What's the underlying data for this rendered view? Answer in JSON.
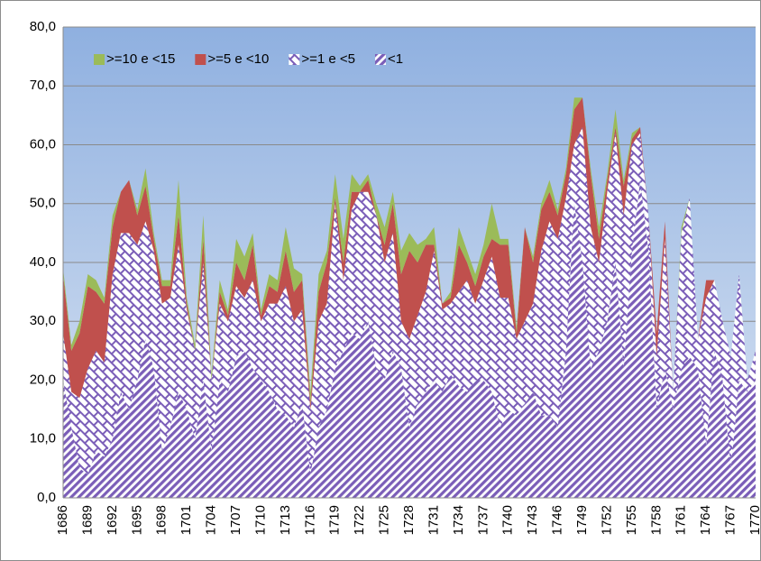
{
  "chart_data": {
    "type": "stacked_area",
    "categories": [
      "1686",
      null,
      null,
      "1689",
      null,
      null,
      "1692",
      null,
      null,
      "1695",
      null,
      null,
      "1698",
      null,
      null,
      "1701",
      null,
      null,
      "1704",
      null,
      null,
      "1707",
      null,
      null,
      "1710",
      null,
      null,
      "1713",
      null,
      null,
      "1716",
      null,
      null,
      "1719",
      null,
      null,
      "1722",
      null,
      null,
      "1725",
      null,
      null,
      "1728",
      null,
      null,
      "1731",
      null,
      null,
      "1734",
      null,
      null,
      "1737",
      null,
      null,
      "1740",
      null,
      null,
      "1743",
      null,
      null,
      "1746",
      null,
      null,
      "1749",
      null,
      null,
      "1752",
      null,
      null,
      "1755",
      null,
      null,
      "1758",
      null,
      null,
      "1761",
      null,
      null,
      "1764",
      null,
      null,
      "1767",
      null,
      null,
      "1770"
    ],
    "series": [
      {
        "name": ">=10 e <15",
        "color": "#9bbb59",
        "pattern": "solid",
        "values": [
          1,
          1,
          2,
          2,
          2,
          1,
          2,
          0,
          0,
          1,
          3,
          1,
          1,
          1,
          6,
          1,
          1,
          4,
          1,
          2,
          1,
          4,
          4,
          2,
          1,
          2,
          2,
          4,
          4,
          1,
          2,
          3,
          2,
          4,
          4,
          3,
          1,
          1,
          2,
          3,
          2,
          4,
          3,
          3,
          1,
          3,
          0,
          1,
          3,
          2,
          2,
          2,
          6,
          1,
          1,
          1,
          0,
          1,
          1,
          2,
          1,
          1,
          2,
          0,
          1,
          2,
          1,
          3,
          1,
          1,
          0,
          0,
          0,
          0,
          0,
          1,
          0,
          0,
          0,
          0,
          0,
          0,
          0,
          0,
          0
        ]
      },
      {
        "name": ">=5 e <10",
        "color": "#c0504d",
        "pattern": "solid",
        "values": [
          10,
          7,
          11,
          14,
          10,
          10,
          8,
          7,
          9,
          5,
          6,
          2,
          3,
          2,
          5,
          1,
          0,
          4,
          0,
          2,
          1,
          4,
          3,
          6,
          1,
          3,
          2,
          6,
          5,
          5,
          1,
          5,
          7,
          1,
          3,
          3,
          0,
          2,
          0,
          3,
          5,
          8,
          15,
          9,
          8,
          1,
          1,
          1,
          8,
          3,
          3,
          4,
          3,
          9,
          9,
          1,
          16,
          7,
          7,
          5,
          4,
          4,
          6,
          5,
          9,
          4,
          2,
          1,
          5,
          1,
          1,
          0,
          4,
          3,
          0,
          0,
          0,
          0,
          3,
          0,
          0,
          0,
          0,
          0,
          0
        ]
      },
      {
        "name": ">=1 e <5",
        "color": "#7b5eb8",
        "pattern": "lattice",
        "values": [
          8,
          6,
          12,
          18,
          17,
          16,
          28,
          27,
          30,
          23,
          20,
          20,
          25,
          22,
          25,
          17,
          15,
          20,
          12,
          13,
          12,
          12,
          9,
          15,
          10,
          15,
          18,
          22,
          18,
          16,
          11,
          18,
          18,
          28,
          12,
          21,
          25,
          22,
          26,
          20,
          20,
          8,
          15,
          15,
          17,
          22,
          14,
          12,
          16,
          19,
          13,
          17,
          23,
          22,
          19,
          13,
          14,
          15,
          28,
          33,
          32,
          26,
          10,
          23,
          24,
          15,
          22,
          22,
          26,
          18,
          8,
          6,
          9,
          22,
          3,
          23,
          27,
          5,
          25,
          12,
          10,
          19,
          18,
          2,
          5
        ]
      },
      {
        "name": "<1",
        "color": "#7b5eb8",
        "pattern": "diagonal",
        "values": [
          20,
          12,
          5,
          4,
          8,
          7,
          10,
          18,
          15,
          20,
          27,
          22,
          8,
          12,
          18,
          15,
          10,
          20,
          8,
          20,
          18,
          24,
          25,
          22,
          20,
          18,
          15,
          14,
          12,
          16,
          4,
          12,
          15,
          22,
          25,
          28,
          27,
          30,
          22,
          20,
          25,
          22,
          12,
          16,
          18,
          20,
          18,
          21,
          19,
          18,
          20,
          20,
          18,
          12,
          15,
          14,
          16,
          18,
          14,
          14,
          12,
          25,
          50,
          40,
          22,
          25,
          30,
          40,
          22,
          42,
          54,
          42,
          15,
          22,
          15,
          22,
          24,
          22,
          9,
          25,
          20,
          5,
          20,
          18,
          20
        ]
      }
    ],
    "ylim": [
      0,
      80
    ],
    "yticks": [
      {
        "value": 0,
        "label": "0,0"
      },
      {
        "value": 10,
        "label": "10,0"
      },
      {
        "value": 20,
        "label": "20,0"
      },
      {
        "value": 30,
        "label": "30,0"
      },
      {
        "value": 40,
        "label": "40,0"
      },
      {
        "value": 50,
        "label": "50,0"
      },
      {
        "value": 60,
        "label": "60,0"
      },
      {
        "value": 70,
        "label": "70,0"
      },
      {
        "value": 80,
        "label": "80,0"
      }
    ],
    "grid": true,
    "legend": "top-left"
  }
}
